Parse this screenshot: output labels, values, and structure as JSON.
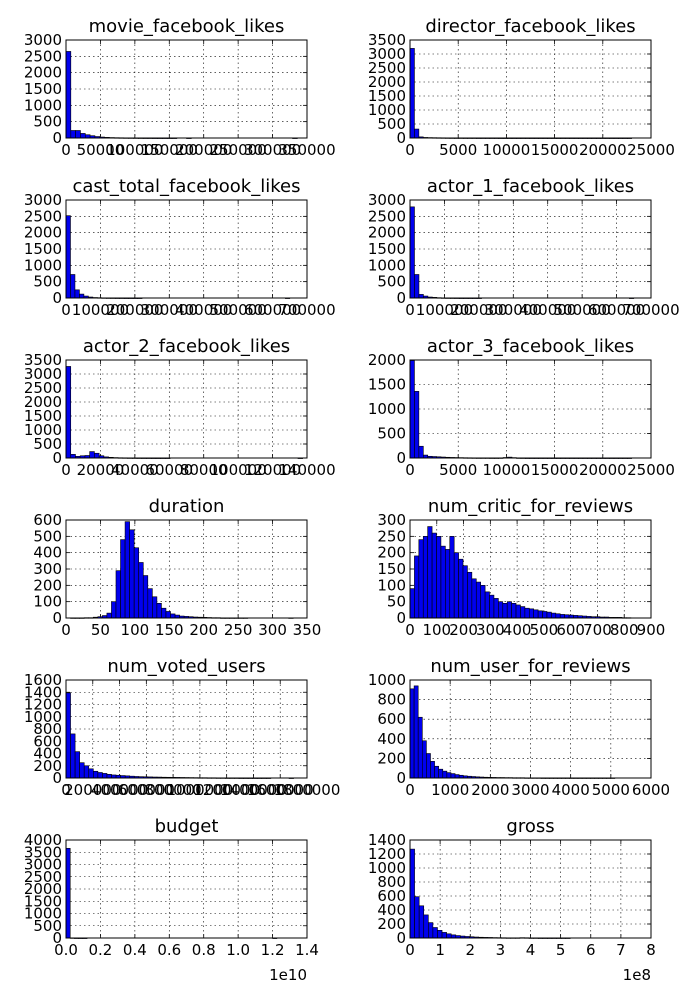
{
  "colors": {
    "bar": "#0000ee",
    "edge": "#000000"
  },
  "chart_data": [
    {
      "type": "bar",
      "title": "movie_facebook_likes",
      "xlim": [
        0,
        350000
      ],
      "ylim": [
        0,
        3000
      ],
      "xticks": [
        "0",
        "50000",
        "100000",
        "150000",
        "200000",
        "250000",
        "300000",
        "350000"
      ],
      "yticks": [
        "0",
        "500",
        "1000",
        "1500",
        "2000",
        "2500",
        "3000"
      ],
      "bin_width": 7000,
      "values": [
        2650,
        230,
        230,
        140,
        100,
        70,
        45,
        30,
        20,
        14,
        10,
        8,
        6,
        5,
        4,
        3,
        2,
        2,
        1,
        1,
        1,
        1,
        1,
        0,
        0,
        1,
        0,
        0,
        0,
        0,
        0,
        0,
        0,
        0,
        0,
        0,
        0,
        0,
        0,
        0,
        0,
        0,
        0,
        0,
        0,
        0,
        0,
        1,
        0,
        0
      ]
    },
    {
      "type": "bar",
      "title": "director_facebook_likes",
      "xlim": [
        0,
        25000
      ],
      "ylim": [
        0,
        3500
      ],
      "xticks": [
        "0",
        "5000",
        "10000",
        "15000",
        "20000",
        "25000"
      ],
      "yticks": [
        "0",
        "500",
        "1000",
        "1500",
        "2000",
        "2500",
        "3000",
        "3500"
      ],
      "bin_width": 460,
      "values": [
        3200,
        320,
        40,
        20,
        15,
        12,
        10,
        8,
        6,
        5,
        4,
        4,
        3,
        3,
        3,
        2,
        2,
        2,
        2,
        2,
        1,
        1,
        1,
        1,
        1,
        1,
        1,
        1,
        1,
        1,
        1,
        1,
        1,
        1,
        1,
        1,
        1,
        1,
        1,
        1,
        1,
        1,
        1,
        1,
        1,
        1,
        1,
        1,
        1,
        1
      ]
    },
    {
      "type": "bar",
      "title": "cast_total_facebook_likes",
      "xlim": [
        0,
        700000
      ],
      "ylim": [
        0,
        3000
      ],
      "xticks": [
        "0",
        "100000",
        "200000",
        "300000",
        "400000",
        "500000",
        "600000",
        "700000"
      ],
      "yticks": [
        "0",
        "500",
        "1000",
        "1500",
        "2000",
        "2500",
        "3000"
      ],
      "bin_width": 13000,
      "values": [
        2520,
        720,
        250,
        120,
        60,
        30,
        15,
        10,
        6,
        4,
        3,
        2,
        2,
        1,
        1,
        1,
        1,
        0,
        0,
        0,
        0,
        0,
        0,
        0,
        0,
        0,
        0,
        0,
        0,
        0,
        0,
        0,
        0,
        0,
        0,
        0,
        0,
        0,
        0,
        0,
        0,
        0,
        0,
        0,
        0,
        0,
        0,
        0,
        0,
        1
      ]
    },
    {
      "type": "bar",
      "title": "actor_1_facebook_likes",
      "xlim": [
        0,
        700000
      ],
      "ylim": [
        0,
        3000
      ],
      "xticks": [
        "0",
        "100000",
        "200000",
        "300000",
        "400000",
        "500000",
        "600000",
        "700000"
      ],
      "yticks": [
        "0",
        "500",
        "1000",
        "1500",
        "2000",
        "2500",
        "3000"
      ],
      "bin_width": 13000,
      "values": [
        2790,
        720,
        110,
        60,
        30,
        20,
        10,
        6,
        4,
        3,
        2,
        1,
        1,
        1,
        1,
        1,
        0,
        0,
        0,
        0,
        0,
        0,
        0,
        0,
        0,
        0,
        0,
        0,
        0,
        0,
        0,
        0,
        0,
        0,
        0,
        0,
        0,
        0,
        0,
        0,
        0,
        0,
        0,
        0,
        0,
        0,
        0,
        0,
        0,
        1
      ]
    },
    {
      "type": "bar",
      "title": "actor_2_facebook_likes",
      "xlim": [
        0,
        140000
      ],
      "ylim": [
        0,
        3500
      ],
      "xticks": [
        "0",
        "20000",
        "40000",
        "60000",
        "80000",
        "100000",
        "120000",
        "140000"
      ],
      "yticks": [
        "0",
        "500",
        "1000",
        "1500",
        "2000",
        "2500",
        "3000",
        "3500"
      ],
      "bin_width": 2750,
      "values": [
        3270,
        130,
        60,
        80,
        90,
        230,
        170,
        80,
        40,
        25,
        15,
        10,
        8,
        5,
        4,
        3,
        2,
        2,
        1,
        1,
        1,
        1,
        0,
        0,
        0,
        0,
        0,
        0,
        0,
        0,
        0,
        0,
        0,
        0,
        0,
        0,
        0,
        0,
        0,
        0,
        0,
        0,
        0,
        0,
        0,
        0,
        0,
        0,
        0,
        1
      ]
    },
    {
      "type": "bar",
      "title": "actor_3_facebook_likes",
      "xlim": [
        0,
        25000
      ],
      "ylim": [
        0,
        2000
      ],
      "xticks": [
        "0",
        "5000",
        "10000",
        "15000",
        "20000",
        "25000"
      ],
      "yticks": [
        "0",
        "500",
        "1000",
        "1500",
        "2000"
      ],
      "bin_width": 460,
      "values": [
        1990,
        1360,
        240,
        60,
        35,
        30,
        25,
        20,
        15,
        12,
        10,
        8,
        6,
        5,
        4,
        3,
        3,
        3,
        2,
        2,
        3,
        10,
        18,
        8,
        3,
        2,
        1,
        1,
        1,
        1,
        1,
        1,
        1,
        1,
        1,
        1,
        1,
        1,
        1,
        1,
        1,
        1,
        1,
        1,
        1,
        1,
        1,
        1,
        1,
        1
      ]
    },
    {
      "type": "bar",
      "title": "duration",
      "xlim": [
        0,
        350
      ],
      "ylim": [
        0,
        600
      ],
      "xticks": [
        "0",
        "50",
        "100",
        "150",
        "200",
        "250",
        "300",
        "350"
      ],
      "yticks": [
        "0",
        "100",
        "200",
        "300",
        "400",
        "500",
        "600"
      ],
      "bin_width": 6.6,
      "values": [
        0,
        1,
        1,
        1,
        2,
        2,
        5,
        8,
        15,
        30,
        100,
        290,
        480,
        590,
        540,
        430,
        340,
        260,
        180,
        130,
        90,
        60,
        40,
        25,
        18,
        12,
        10,
        8,
        6,
        5,
        4,
        3,
        2,
        2,
        1,
        1,
        1,
        1,
        1,
        1,
        0,
        0,
        0,
        0,
        0,
        0,
        0,
        0,
        0,
        1
      ]
    },
    {
      "type": "bar",
      "title": "num_critic_for_reviews",
      "xlim": [
        0,
        900
      ],
      "ylim": [
        0,
        300
      ],
      "xticks": [
        "0",
        "100",
        "200",
        "300",
        "400",
        "500",
        "600",
        "700",
        "800",
        "900"
      ],
      "yticks": [
        "0",
        "50",
        "100",
        "150",
        "200",
        "250",
        "300"
      ],
      "bin_width": 16.5,
      "values": [
        90,
        190,
        240,
        250,
        280,
        260,
        250,
        220,
        210,
        250,
        200,
        180,
        160,
        140,
        120,
        110,
        100,
        80,
        70,
        60,
        50,
        45,
        50,
        45,
        40,
        35,
        30,
        28,
        25,
        22,
        20,
        18,
        15,
        13,
        11,
        10,
        9,
        8,
        7,
        6,
        5,
        4,
        4,
        3,
        3,
        2,
        2,
        2,
        1,
        1
      ]
    },
    {
      "type": "bar",
      "title": "num_voted_users",
      "xlim": [
        0,
        1800000
      ],
      "ylim": [
        0,
        1600
      ],
      "xticks": [
        "0",
        "200000",
        "400000",
        "600000",
        "800000",
        "1000000",
        "1200000",
        "1400000",
        "1600000",
        "1800000"
      ],
      "yticks": [
        "0",
        "200",
        "400",
        "600",
        "800",
        "1000",
        "1200",
        "1400",
        "1600"
      ],
      "bin_width": 34000,
      "values": [
        1390,
        720,
        430,
        250,
        200,
        150,
        110,
        90,
        75,
        60,
        50,
        45,
        40,
        35,
        30,
        25,
        22,
        20,
        18,
        16,
        15,
        13,
        12,
        11,
        10,
        9,
        8,
        7,
        6,
        5,
        5,
        4,
        4,
        3,
        3,
        2,
        2,
        2,
        1,
        1,
        1,
        1,
        1,
        1,
        1,
        0,
        0,
        0,
        0,
        1
      ]
    },
    {
      "type": "bar",
      "title": "num_user_for_reviews",
      "xlim": [
        0,
        6000
      ],
      "ylim": [
        0,
        1000
      ],
      "xticks": [
        "0",
        "1000",
        "2000",
        "3000",
        "4000",
        "5000",
        "6000"
      ],
      "yticks": [
        "0",
        "200",
        "400",
        "600",
        "800",
        "1000"
      ],
      "bin_width": 102,
      "values": [
        910,
        940,
        620,
        380,
        250,
        170,
        120,
        90,
        70,
        55,
        45,
        35,
        28,
        22,
        18,
        15,
        12,
        10,
        8,
        7,
        6,
        5,
        5,
        4,
        4,
        3,
        3,
        3,
        2,
        2,
        2,
        2,
        1,
        1,
        1,
        1,
        1,
        1,
        1,
        1,
        1,
        1,
        1,
        1,
        1,
        1,
        1,
        1,
        1,
        1
      ]
    },
    {
      "type": "bar",
      "title": "budget",
      "xlim": [
        0,
        1.4
      ],
      "ylim": [
        0,
        4000
      ],
      "xticks": [
        "0.0",
        "0.2",
        "0.4",
        "0.6",
        "0.8",
        "1.0",
        "1.2",
        "1.4"
      ],
      "yticks": [
        "0",
        "500",
        "1000",
        "1500",
        "2000",
        "2500",
        "3000",
        "3500",
        "4000"
      ],
      "offset_text": "1e10",
      "bin_width": 0.0245,
      "values": [
        3660,
        8,
        2,
        1,
        1,
        0,
        0,
        0,
        0,
        0,
        0,
        0,
        0,
        0,
        0,
        0,
        0,
        0,
        0,
        0,
        0,
        0,
        0,
        0,
        0,
        0,
        0,
        0,
        0,
        0,
        0,
        0,
        0,
        0,
        0,
        0,
        0,
        0,
        0,
        0,
        0,
        0,
        0,
        0,
        0,
        0,
        0,
        0,
        0,
        1
      ]
    },
    {
      "type": "bar",
      "title": "gross",
      "xlim": [
        0,
        8
      ],
      "ylim": [
        0,
        1400
      ],
      "xticks": [
        "0",
        "1",
        "2",
        "3",
        "4",
        "5",
        "6",
        "7",
        "8"
      ],
      "yticks": [
        "0",
        "200",
        "400",
        "600",
        "800",
        "1000",
        "1200",
        "1400"
      ],
      "offset_text": "1e8",
      "bin_width": 0.152,
      "values": [
        1270,
        590,
        460,
        330,
        220,
        150,
        110,
        80,
        60,
        45,
        35,
        28,
        22,
        18,
        14,
        11,
        9,
        8,
        6,
        5,
        4,
        3,
        3,
        3,
        5,
        4,
        2,
        2,
        1,
        1,
        1,
        1,
        1,
        1,
        1,
        0,
        0,
        0,
        0,
        0,
        0,
        0,
        0,
        0,
        0,
        0,
        0,
        0,
        0,
        0
      ]
    }
  ]
}
